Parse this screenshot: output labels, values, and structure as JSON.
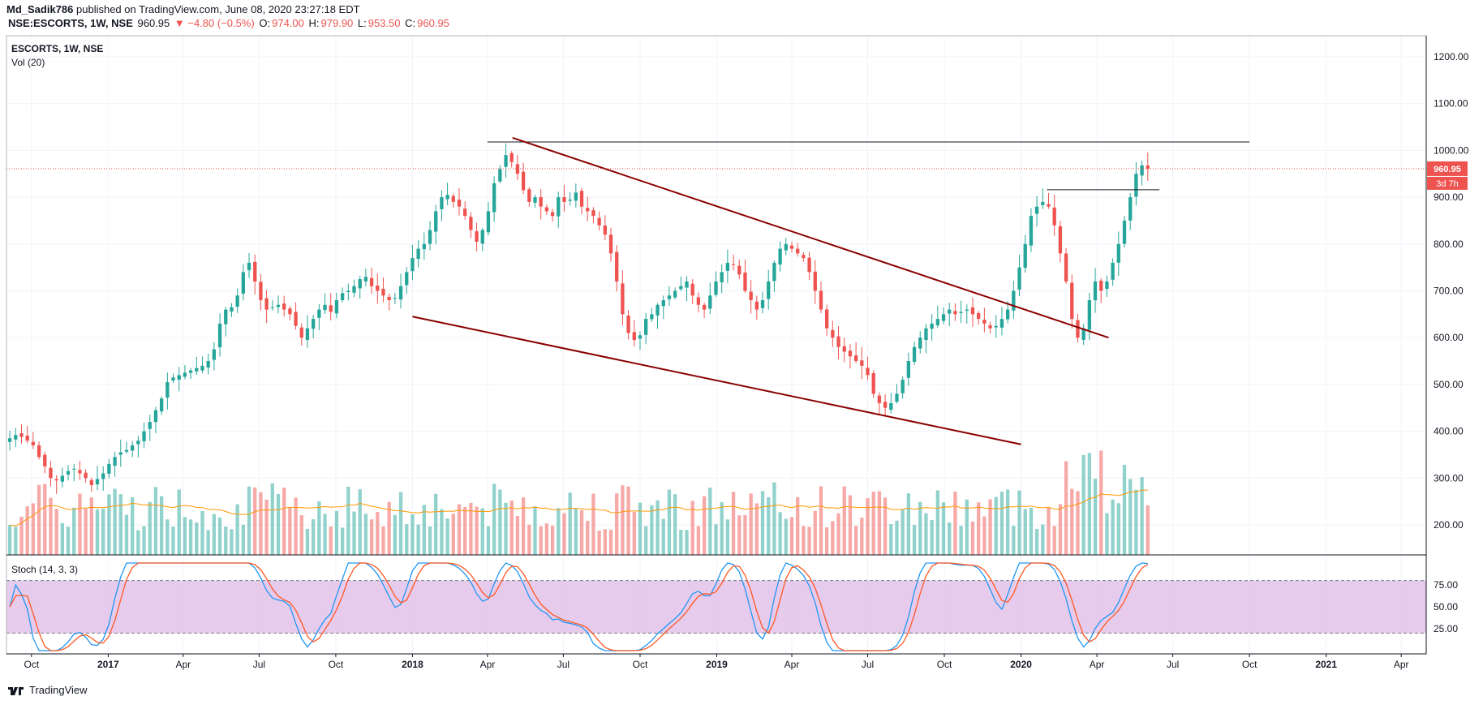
{
  "header": {
    "user": "Md_Sadik786",
    "published": "published on TradingView.com, June 08, 2020 23:27:18 EDT",
    "symbol": "NSE:ESCORTS, 1W, NSE",
    "last": "960.95",
    "change": "▼ −4.80 (−0.5%)",
    "o_label": "O:",
    "o": "974.00",
    "h_label": "H:",
    "h": "979.90",
    "l_label": "L:",
    "l": "953.50",
    "c_label": "C:",
    "c": "960.95"
  },
  "legend": {
    "title": "ESCORTS, 1W, NSE",
    "volume": "Vol (20)",
    "stoch": "Stoch (14, 3, 3)"
  },
  "price_badge": {
    "value": "960.95",
    "countdown": "3d 7h"
  },
  "footer": {
    "brand": "TradingView"
  },
  "colors": {
    "up": "#26a69a",
    "down": "#ef5350",
    "trendline": "#8b0000",
    "stoch_k": "#2196f3",
    "stoch_d": "#ff5722",
    "stoch_band": "#e1bee7",
    "vol_ma": "#ff9800"
  },
  "chart_data": {
    "type": "candlestick",
    "interval": "1W",
    "price_axis": {
      "ticks": [
        "1200.00",
        "1100.00",
        "1000.00",
        "900.00",
        "800.00",
        "700.00",
        "600.00",
        "500.00",
        "400.00",
        "300.00",
        "200.00"
      ],
      "range": [
        130,
        1250
      ]
    },
    "time_axis": {
      "ticks": [
        {
          "label": "Oct",
          "date": "2016-10"
        },
        {
          "label": "2017",
          "date": "2017-01",
          "bold": true
        },
        {
          "label": "Apr",
          "date": "2017-04"
        },
        {
          "label": "Jul",
          "date": "2017-07"
        },
        {
          "label": "Oct",
          "date": "2017-10"
        },
        {
          "label": "2018",
          "date": "2018-01",
          "bold": true
        },
        {
          "label": "Apr",
          "date": "2018-04"
        },
        {
          "label": "Jul",
          "date": "2018-07"
        },
        {
          "label": "Oct",
          "date": "2018-10"
        },
        {
          "label": "2019",
          "date": "2019-01",
          "bold": true
        },
        {
          "label": "Apr",
          "date": "2019-04"
        },
        {
          "label": "Jul",
          "date": "2019-07"
        },
        {
          "label": "Oct",
          "date": "2019-10"
        },
        {
          "label": "2020",
          "date": "2020-01",
          "bold": true
        },
        {
          "label": "Apr",
          "date": "2020-04"
        },
        {
          "label": "Jul",
          "date": "2020-07"
        },
        {
          "label": "Oct",
          "date": "2020-10"
        },
        {
          "label": "2021",
          "date": "2021-01",
          "bold": true
        },
        {
          "label": "Apr",
          "date": "2021-04"
        }
      ]
    },
    "close": [
      385,
      392,
      388,
      380,
      370,
      345,
      325,
      300,
      295,
      305,
      315,
      320,
      310,
      300,
      285,
      298,
      310,
      330,
      345,
      355,
      360,
      370,
      380,
      400,
      420,
      445,
      470,
      505,
      515,
      520,
      525,
      530,
      535,
      540,
      550,
      575,
      630,
      660,
      665,
      690,
      740,
      760,
      720,
      680,
      660,
      665,
      670,
      660,
      650,
      625,
      600,
      620,
      640,
      660,
      670,
      655,
      680,
      695,
      700,
      710,
      725,
      730,
      710,
      700,
      690,
      680,
      685,
      710,
      740,
      770,
      790,
      800,
      830,
      870,
      900,
      905,
      890,
      880,
      860,
      830,
      805,
      830,
      870,
      930,
      960,
      990,
      975,
      950,
      915,
      890,
      900,
      880,
      870,
      860,
      900,
      890,
      895,
      910,
      880,
      870,
      860,
      840,
      820,
      780,
      720,
      650,
      610,
      595,
      605,
      640,
      650,
      670,
      680,
      690,
      700,
      710,
      720,
      690,
      670,
      660,
      690,
      720,
      740,
      760,
      755,
      735,
      700,
      680,
      660,
      680,
      720,
      760,
      790,
      800,
      790,
      780,
      770,
      740,
      700,
      660,
      620,
      600,
      580,
      570,
      560,
      550,
      540,
      520,
      480,
      460,
      450,
      460,
      480,
      510,
      550,
      580,
      600,
      620,
      630,
      640,
      650,
      660,
      650,
      655,
      660,
      650,
      640,
      630,
      620,
      625,
      640,
      660,
      700,
      750,
      800,
      860,
      880,
      890,
      880,
      840,
      780,
      720,
      640,
      600,
      620,
      680,
      720,
      700,
      720,
      760,
      800,
      850,
      900,
      950,
      968,
      961
    ],
    "volume_ma_ticks": [
      "400.00",
      "300.00",
      "200.00"
    ],
    "stoch_levels": {
      "upper": 80,
      "lower": 20,
      "ticks": [
        "75.00",
        "50.00",
        "25.00"
      ]
    }
  },
  "annotations": {
    "horizontal_lines": [
      {
        "price": 1018,
        "from": "2018-04-01",
        "to": "2020-10-01"
      },
      {
        "price": 916,
        "from": "2020-02-01",
        "to": "2020-06-15"
      }
    ],
    "channel_upper": {
      "from": {
        "date": "2018-05-01",
        "price": 1027
      },
      "to": {
        "date": "2020-04-15",
        "price": 600
      }
    },
    "channel_lower": {
      "from": {
        "date": "2018-01-01",
        "price": 645
      },
      "to": {
        "date": "2020-01-01",
        "price": 372
      }
    },
    "current_price_line": 960.95
  }
}
